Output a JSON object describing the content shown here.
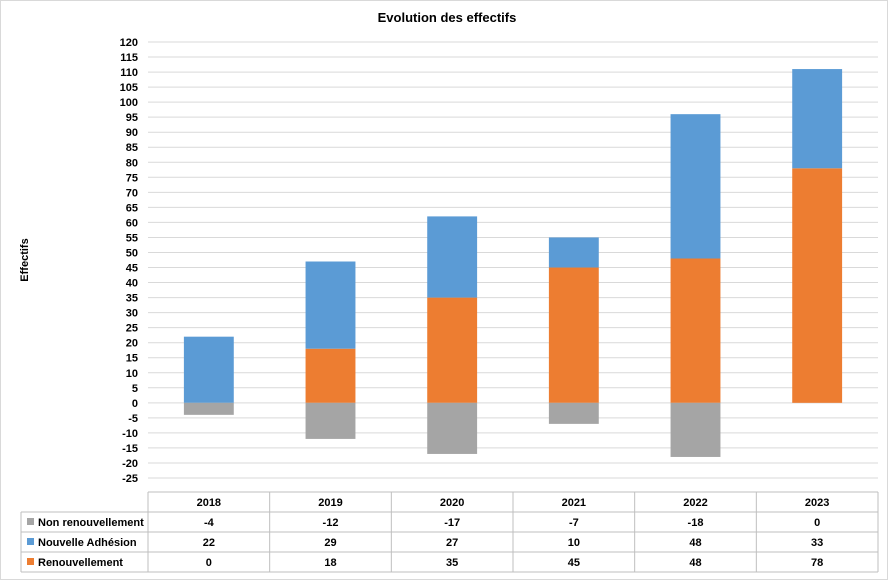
{
  "chart_data": {
    "type": "bar",
    "stacked": true,
    "title": "Evolution des effectifs",
    "ylabel": "Effectifs",
    "xlabel": "",
    "ylim": [
      -25,
      120
    ],
    "ytick_step": 5,
    "grid": true,
    "legend": "data-table",
    "categories": [
      "2018",
      "2019",
      "2020",
      "2021",
      "2022",
      "2023"
    ],
    "series": [
      {
        "name": "Non renouvellement",
        "color": "#a5a5a5",
        "values": [
          -4,
          -12,
          -17,
          -7,
          -18,
          0
        ]
      },
      {
        "name": "Nouvelle Adhésion",
        "color": "#5b9bd5",
        "values": [
          22,
          29,
          27,
          10,
          48,
          33
        ]
      },
      {
        "name": "Renouvellement",
        "color": "#ed7d31",
        "values": [
          0,
          18,
          35,
          45,
          48,
          78
        ]
      }
    ],
    "stack_order": [
      "Renouvellement",
      "Nouvelle Adhésion"
    ]
  }
}
